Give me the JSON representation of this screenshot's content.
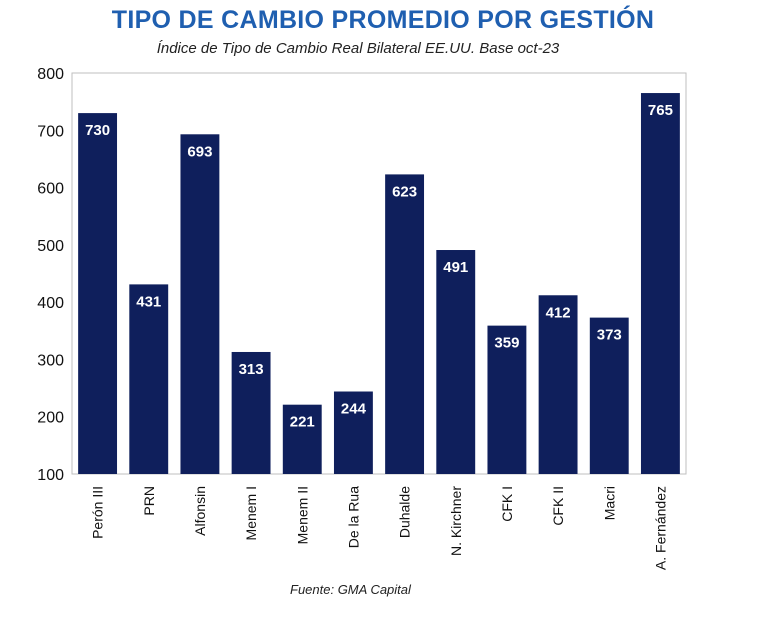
{
  "colors": {
    "title": "#1f5fb0",
    "bar": "#0f1f5c",
    "axis": "#555555",
    "background": "#ffffff"
  },
  "chart_data": {
    "type": "bar",
    "title": "TIPO DE CAMBIO PROMEDIO POR GESTIÓN",
    "subtitle": "Índice de Tipo de Cambio Real Bilateral EE.UU. Base oct-23",
    "xlabel": "",
    "ylabel": "",
    "categories": [
      "Perón III",
      "PRN",
      "Alfonsin",
      "Menem I",
      "Menem II",
      "De la Rua",
      "Duhalde",
      "N. Kirchner",
      "CFK I",
      "CFK II",
      "Macri",
      "A. Fernández"
    ],
    "values": [
      730,
      431,
      693,
      313,
      221,
      244,
      623,
      491,
      359,
      412,
      373,
      765
    ],
    "ylim": [
      100,
      800
    ],
    "yticks": [
      100,
      200,
      300,
      400,
      500,
      600,
      700,
      800
    ],
    "grid": false,
    "legend": "none",
    "data_labels": true
  },
  "source": "Fuente: GMA Capital"
}
